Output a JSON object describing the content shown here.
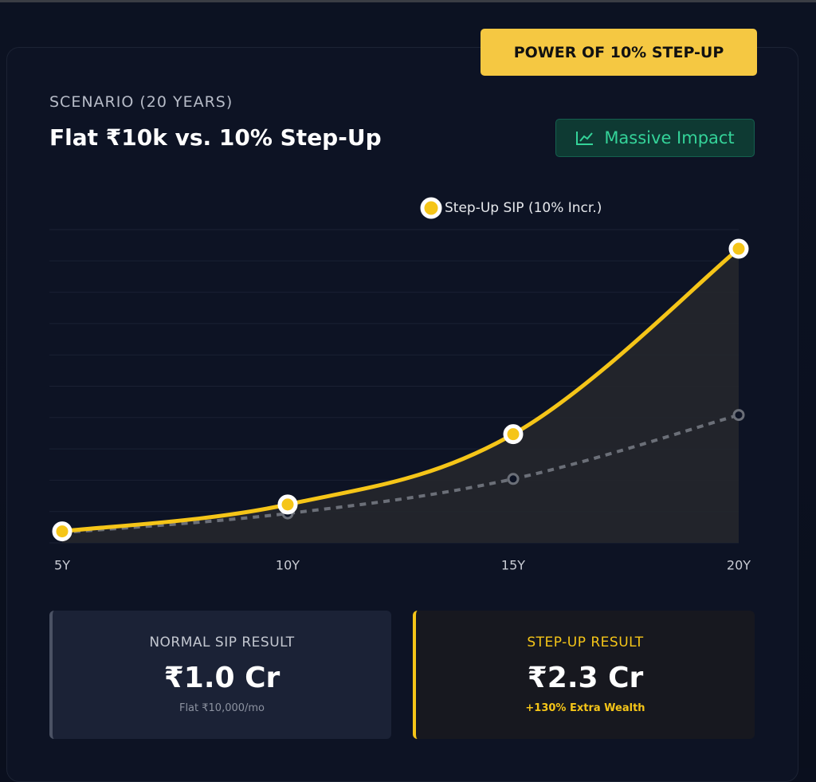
{
  "badge": "POWER OF 10% STEP-UP",
  "header": {
    "subtitle": "SCENARIO (20 YEARS)",
    "title": "Flat ₹10k vs. 10% Step-Up",
    "tag": "Massive Impact"
  },
  "chart_data": {
    "type": "line",
    "categories": [
      "5Y",
      "10Y",
      "15Y",
      "20Y"
    ],
    "series": [
      {
        "name": "Step-Up SIP (10% Incr.)",
        "color": "#f5c518",
        "values": [
          0.09,
          0.3,
          0.85,
          2.3
        ],
        "area": true
      },
      {
        "color": "#6b6f78",
        "values": [
          0.08,
          0.23,
          0.5,
          1.0
        ],
        "dashed": true
      }
    ],
    "ylim": [
      0,
      2.45
    ],
    "grid": true
  },
  "results": [
    {
      "label": "NORMAL SIP RESULT",
      "value": "₹1.0 Cr",
      "note": "Flat ₹10,000/mo"
    },
    {
      "label": "STEP-UP RESULT",
      "value": "₹2.3 Cr",
      "note": "+130% Extra Wealth"
    }
  ]
}
